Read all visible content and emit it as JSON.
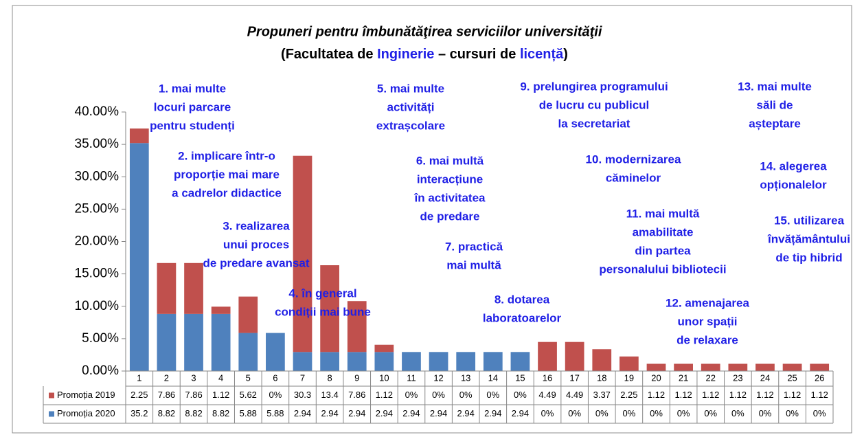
{
  "chart_data": {
    "type": "stacked_bar",
    "title": "Propuneri pentru îmbunătăţirea  serviciilor universităţii",
    "subtitle": [
      "(Facultatea de ",
      "Inginerie",
      " – cursuri de ",
      "licență",
      ")"
    ],
    "categories": [
      "1",
      "2",
      "3",
      "4",
      "5",
      "6",
      "7",
      "8",
      "9",
      "10",
      "11",
      "12",
      "13",
      "14",
      "15",
      "16",
      "17",
      "18",
      "19",
      "20",
      "21",
      "22",
      "23",
      "24",
      "25",
      "26"
    ],
    "series": [
      {
        "name": "Promoția 2019",
        "color": "#c0504d",
        "values": [
          2.25,
          7.86,
          7.86,
          1.12,
          5.62,
          0,
          30.3,
          13.4,
          7.86,
          1.12,
          0,
          0,
          0,
          0,
          0,
          4.49,
          4.49,
          3.37,
          2.25,
          1.12,
          1.12,
          1.12,
          1.12,
          1.12,
          1.12,
          1.12
        ],
        "value_labels": [
          "2.25",
          "7.86",
          "7.86",
          "1.12",
          "5.62",
          "0%",
          "30.3",
          "13.4",
          "7.86",
          "1.12",
          "0%",
          "0%",
          "0%",
          "0%",
          "0%",
          "4.49",
          "4.49",
          "3.37",
          "2.25",
          "1.12",
          "1.12",
          "1.12",
          "1.12",
          "1.12",
          "1.12",
          "1.12"
        ]
      },
      {
        "name": "Promoția 2020",
        "color": "#4f81bd",
        "values": [
          35.2,
          8.82,
          8.82,
          8.82,
          5.88,
          5.88,
          2.94,
          2.94,
          2.94,
          2.94,
          2.94,
          2.94,
          2.94,
          2.94,
          2.94,
          0,
          0,
          0,
          0,
          0,
          0,
          0,
          0,
          0,
          0,
          0
        ],
        "value_labels": [
          "35.2",
          "8.82",
          "8.82",
          "8.82",
          "5.88",
          "5.88",
          "2.94",
          "2.94",
          "2.94",
          "2.94",
          "2.94",
          "2.94",
          "2.94",
          "2.94",
          "2.94",
          "0%",
          "0%",
          "0%",
          "0%",
          "0%",
          "0%",
          "0%",
          "0%",
          "0%",
          "0%",
          "0%"
        ]
      }
    ],
    "ylim": [
      0,
      40
    ],
    "yticks": [
      {
        "value": 0,
        "label": "0.00%"
      },
      {
        "value": 5,
        "label": "5.00%"
      },
      {
        "value": 10,
        "label": "10.00%"
      },
      {
        "value": 15,
        "label": "15.00%"
      },
      {
        "value": 20,
        "label": "20.00%"
      },
      {
        "value": 25,
        "label": "25.00%"
      },
      {
        "value": 30,
        "label": "30.00%"
      },
      {
        "value": 35,
        "label": "35.00%"
      },
      {
        "value": 40,
        "label": "40.00%"
      }
    ],
    "grid": false,
    "annotations": [
      [
        "1. mai multe",
        "locuri parcare",
        "pentru studenți"
      ],
      [
        "2. implicare într-o",
        "proporție mai mare",
        "a  cadrelor didactice"
      ],
      [
        "3. realizarea",
        "unui proces",
        "de predare avansat"
      ],
      [
        "4. în general",
        "condiții mai bune"
      ],
      [
        "5. mai multe",
        "activități",
        "extrașcolare"
      ],
      [
        "6. mai multă",
        "interacțiune",
        "în activitatea",
        "de predare"
      ],
      [
        "7. practică",
        "mai multă"
      ],
      [
        "8. dotarea",
        "laboratoarelor"
      ],
      [
        "9. prelungirea programului",
        "de lucru cu publicul",
        "la secretariat"
      ],
      [
        "10. modernizarea",
        "căminelor"
      ],
      [
        "11. mai multă",
        "amabilitate",
        "din partea",
        "personalului bibliotecii"
      ],
      [
        "12. amenajarea",
        "unor spații",
        "de relaxare"
      ],
      [
        "13. mai multe",
        "săli de",
        "așteptare"
      ],
      [
        "14. alegerea",
        "opționalelor"
      ],
      [
        "15. utilizarea",
        "învățământului",
        "de tip hibrid"
      ]
    ]
  }
}
